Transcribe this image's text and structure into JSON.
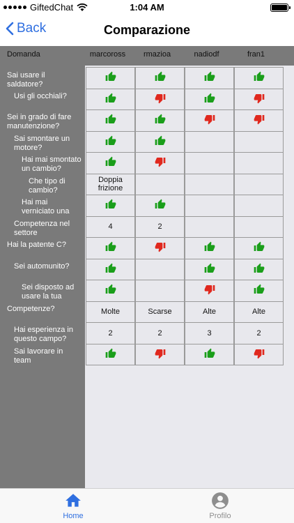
{
  "status": {
    "carrier": "GiftedChat",
    "time": "1:04 AM"
  },
  "nav": {
    "back_label": "Back",
    "title": "Comparazione"
  },
  "header": {
    "label": "Domanda",
    "users": [
      "marcoross",
      "rmazioa",
      "nadiodf",
      "fran1"
    ]
  },
  "questions": [
    "Sai usare il saldatore?",
    "Usi gli occhiali?",
    "Sei in grado di fare manutenzione?",
    "Sai smontare un motore?",
    "Hai mai smontato un cambio?",
    "Che tipo di cambio?",
    "Hai mai verniciato una",
    "Competenza nel settore",
    "Hai la patente C?",
    "Sei automunito?",
    "Sei disposto ad usare la tua",
    "Competenze?",
    "Hai esperienza in questo campo?",
    "Sai lavorare in team"
  ],
  "cells": [
    [
      "up",
      "up",
      "up",
      "up"
    ],
    [
      "up",
      "down",
      "up",
      "down"
    ],
    [
      "up",
      "up",
      "down",
      "down"
    ],
    [
      "up",
      "up",
      "",
      ""
    ],
    [
      "up",
      "down",
      "",
      ""
    ],
    [
      "Doppia frizione",
      "",
      "",
      ""
    ],
    [
      "up",
      "up",
      "",
      ""
    ],
    [
      "4",
      "2",
      "",
      ""
    ],
    [
      "up",
      "down",
      "up",
      "up"
    ],
    [
      "up",
      "",
      "up",
      "up"
    ],
    [
      "up",
      "",
      "down",
      "up"
    ],
    [
      "Molte",
      "Scarse",
      "Alte",
      "Alte"
    ],
    [
      "2",
      "2",
      "3",
      "2"
    ],
    [
      "up",
      "down",
      "up",
      "down"
    ]
  ],
  "tabs": {
    "home": "Home",
    "profile": "Profilo"
  },
  "colors": {
    "thumb_up": "#1a9e1a",
    "thumb_down": "#e0281e",
    "accent": "#2f6fe0"
  }
}
